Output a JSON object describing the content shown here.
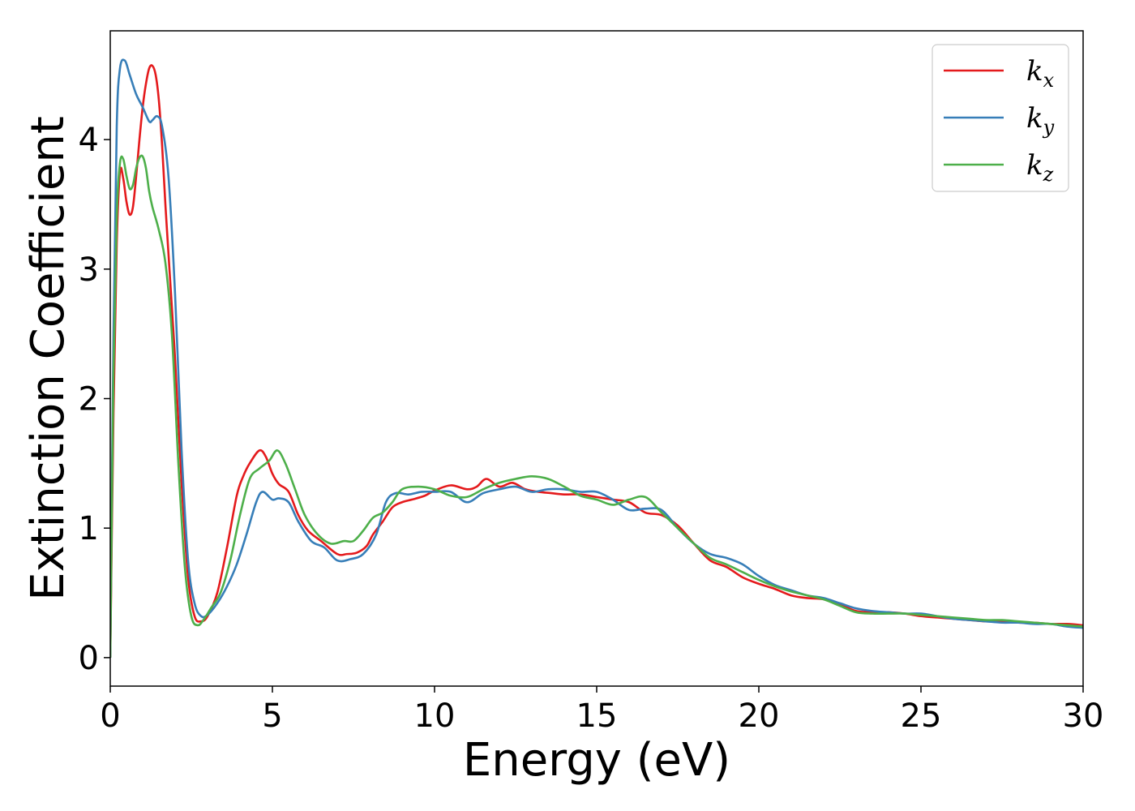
{
  "chart_data": {
    "type": "line",
    "xlabel": "Energy (eV)",
    "ylabel": "Extinction Coefficient",
    "xlim": [
      0,
      30
    ],
    "ylim": [
      -0.22,
      4.84
    ],
    "xticks": [
      0,
      5,
      10,
      15,
      20,
      25,
      30
    ],
    "yticks": [
      0,
      1,
      2,
      3,
      4
    ],
    "grid": false,
    "legend_position": "top-right",
    "series": [
      {
        "name_main": "k",
        "name_sub": "x",
        "color": "#e41a1c",
        "x": [
          0,
          0.1,
          0.2,
          0.3,
          0.4,
          0.5,
          0.6,
          0.7,
          0.8,
          0.9,
          1.0,
          1.1,
          1.2,
          1.3,
          1.4,
          1.5,
          1.6,
          1.7,
          1.8,
          2.0,
          2.2,
          2.4,
          2.6,
          2.8,
          3.0,
          3.3,
          3.6,
          3.9,
          4.1,
          4.3,
          4.6,
          4.8,
          5.0,
          5.2,
          5.5,
          5.8,
          6.1,
          6.5,
          7.0,
          7.3,
          7.6,
          7.9,
          8.1,
          8.4,
          8.7,
          9.0,
          9.3,
          9.7,
          10.0,
          10.5,
          11.0,
          11.3,
          11.6,
          12.0,
          12.4,
          12.8,
          13.2,
          13.6,
          14.0,
          14.5,
          15.0,
          15.5,
          16.0,
          16.5,
          17.0,
          17.5,
          18.0,
          18.5,
          19.0,
          19.5,
          20.0,
          20.5,
          21.0,
          21.5,
          22.0,
          22.5,
          23.0,
          23.5,
          24.0,
          24.5,
          25.0,
          25.5,
          26.0,
          26.5,
          27.0,
          27.5,
          28.0,
          28.5,
          29.0,
          29.5,
          30.0
        ],
        "y": [
          0,
          1.9,
          3.2,
          3.75,
          3.7,
          3.52,
          3.42,
          3.48,
          3.72,
          4.0,
          4.25,
          4.43,
          4.55,
          4.57,
          4.5,
          4.3,
          3.95,
          3.5,
          3.1,
          2.3,
          1.35,
          0.62,
          0.32,
          0.28,
          0.32,
          0.5,
          0.85,
          1.25,
          1.4,
          1.5,
          1.6,
          1.55,
          1.42,
          1.34,
          1.28,
          1.1,
          0.98,
          0.9,
          0.8,
          0.8,
          0.81,
          0.86,
          0.95,
          1.05,
          1.16,
          1.2,
          1.22,
          1.25,
          1.29,
          1.33,
          1.3,
          1.32,
          1.38,
          1.32,
          1.35,
          1.3,
          1.28,
          1.27,
          1.26,
          1.26,
          1.24,
          1.22,
          1.2,
          1.12,
          1.1,
          1.02,
          0.88,
          0.75,
          0.7,
          0.62,
          0.57,
          0.53,
          0.48,
          0.46,
          0.45,
          0.41,
          0.36,
          0.35,
          0.35,
          0.34,
          0.32,
          0.31,
          0.3,
          0.29,
          0.28,
          0.28,
          0.27,
          0.27,
          0.26,
          0.26,
          0.25
        ]
      },
      {
        "name_main": "k",
        "name_sub": "y",
        "color": "#377eb8",
        "x": [
          0,
          0.1,
          0.2,
          0.3,
          0.45,
          0.6,
          0.8,
          1.0,
          1.2,
          1.3,
          1.45,
          1.6,
          1.8,
          2.0,
          2.2,
          2.4,
          2.6,
          2.8,
          3.0,
          3.3,
          3.6,
          3.9,
          4.2,
          4.5,
          4.7,
          5.0,
          5.2,
          5.5,
          5.8,
          6.2,
          6.6,
          7.0,
          7.4,
          7.8,
          8.2,
          8.5,
          8.8,
          9.2,
          9.6,
          10.0,
          10.5,
          11.0,
          11.5,
          12.0,
          12.5,
          13.0,
          13.5,
          14.0,
          14.5,
          15.0,
          15.5,
          16.0,
          16.5,
          17.0,
          17.5,
          18.0,
          18.5,
          19.0,
          19.5,
          20.0,
          20.5,
          21.0,
          21.5,
          22.0,
          22.5,
          23.0,
          23.5,
          24.0,
          24.5,
          25.0,
          25.5,
          26.0,
          26.5,
          27.0,
          27.5,
          28.0,
          28.5,
          29.0,
          29.5,
          30.0
        ],
        "y": [
          0,
          2.5,
          4.1,
          4.55,
          4.61,
          4.5,
          4.35,
          4.25,
          4.14,
          4.15,
          4.18,
          4.1,
          3.7,
          2.8,
          1.6,
          0.75,
          0.42,
          0.32,
          0.33,
          0.42,
          0.55,
          0.72,
          0.95,
          1.2,
          1.28,
          1.22,
          1.23,
          1.2,
          1.05,
          0.9,
          0.85,
          0.75,
          0.76,
          0.8,
          0.95,
          1.2,
          1.27,
          1.26,
          1.28,
          1.28,
          1.28,
          1.2,
          1.27,
          1.3,
          1.32,
          1.28,
          1.3,
          1.3,
          1.28,
          1.28,
          1.22,
          1.14,
          1.15,
          1.14,
          1.0,
          0.88,
          0.8,
          0.77,
          0.72,
          0.63,
          0.56,
          0.52,
          0.48,
          0.46,
          0.42,
          0.38,
          0.36,
          0.35,
          0.34,
          0.34,
          0.32,
          0.3,
          0.29,
          0.28,
          0.27,
          0.27,
          0.26,
          0.26,
          0.24,
          0.23
        ]
      },
      {
        "name_main": "k",
        "name_sub": "z",
        "color": "#4daf4a",
        "x": [
          0,
          0.1,
          0.2,
          0.3,
          0.4,
          0.5,
          0.6,
          0.7,
          0.8,
          0.9,
          1.0,
          1.1,
          1.2,
          1.3,
          1.5,
          1.7,
          1.9,
          2.1,
          2.3,
          2.5,
          2.7,
          2.9,
          3.1,
          3.4,
          3.7,
          4.0,
          4.3,
          4.6,
          4.9,
          5.15,
          5.4,
          5.7,
          6.0,
          6.4,
          6.8,
          7.2,
          7.5,
          7.8,
          8.1,
          8.4,
          8.7,
          9.0,
          9.5,
          10.0,
          10.5,
          11.0,
          11.5,
          12.0,
          12.5,
          13.0,
          13.5,
          14.0,
          14.5,
          15.0,
          15.5,
          16.0,
          16.5,
          17.0,
          17.5,
          18.0,
          18.5,
          19.0,
          19.5,
          20.0,
          20.5,
          21.0,
          21.5,
          22.0,
          22.5,
          23.0,
          23.5,
          24.0,
          24.5,
          25.0,
          25.5,
          26.0,
          26.5,
          27.0,
          27.5,
          28.0,
          28.5,
          29.0,
          29.5,
          30.0
        ],
        "y": [
          0,
          2.2,
          3.4,
          3.82,
          3.85,
          3.72,
          3.62,
          3.65,
          3.78,
          3.86,
          3.87,
          3.78,
          3.6,
          3.48,
          3.3,
          3.05,
          2.5,
          1.5,
          0.7,
          0.32,
          0.25,
          0.3,
          0.38,
          0.5,
          0.75,
          1.1,
          1.38,
          1.46,
          1.52,
          1.6,
          1.5,
          1.3,
          1.1,
          0.95,
          0.88,
          0.9,
          0.9,
          0.98,
          1.08,
          1.12,
          1.2,
          1.3,
          1.32,
          1.3,
          1.25,
          1.24,
          1.3,
          1.35,
          1.38,
          1.4,
          1.38,
          1.32,
          1.25,
          1.22,
          1.18,
          1.22,
          1.24,
          1.12,
          1.0,
          0.88,
          0.77,
          0.72,
          0.66,
          0.6,
          0.55,
          0.51,
          0.48,
          0.45,
          0.4,
          0.35,
          0.34,
          0.34,
          0.34,
          0.33,
          0.32,
          0.31,
          0.3,
          0.29,
          0.29,
          0.28,
          0.27,
          0.26,
          0.25,
          0.24
        ]
      }
    ]
  }
}
